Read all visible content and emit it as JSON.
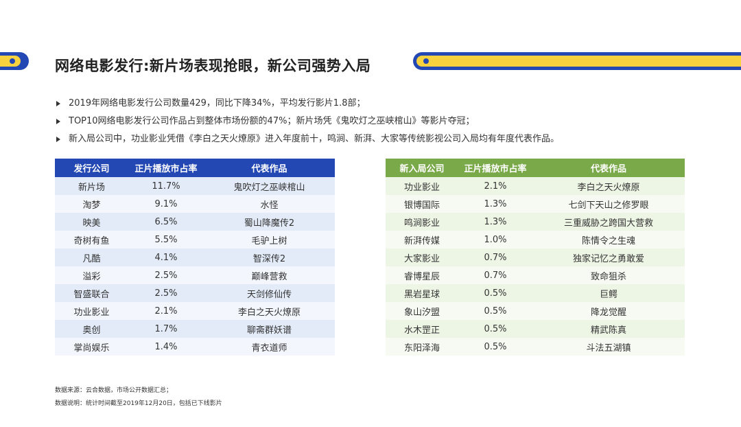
{
  "title": "网络电影发行:新片场表现抢眼，新公司强势入局",
  "bullets": [
    "2019年网络电影发行公司数量429，同比下降34%，平均发行影片1.8部；",
    "TOP10网络电影发行公司作品占到整体市场份额的47%；新片场凭《鬼吹灯之巫峡棺山》等影片夺冠；",
    "新入局公司中，功业影业凭借《李白之天火燎原》进入年度前十，鸣涧、新湃、大家等传统影视公司入局均有年度代表作品。"
  ],
  "table_left": {
    "headers": [
      "发行公司",
      "正片播放市占率",
      "代表作品"
    ],
    "rows": [
      [
        "新片场",
        "11.7%",
        "鬼吹灯之巫峡棺山"
      ],
      [
        "淘梦",
        "9.1%",
        "水怪"
      ],
      [
        "映美",
        "6.5%",
        "蜀山降魔传2"
      ],
      [
        "奇树有鱼",
        "5.5%",
        "毛驴上树"
      ],
      [
        "凡酷",
        "4.1%",
        "智深传2"
      ],
      [
        "溢彩",
        "2.5%",
        "巅峰营救"
      ],
      [
        "智盛联合",
        "2.5%",
        "天剑修仙传"
      ],
      [
        "功业影业",
        "2.1%",
        "李白之天火燎原"
      ],
      [
        "奥创",
        "1.7%",
        "聊斋群妖谱"
      ],
      [
        "掌尚娱乐",
        "1.4%",
        "青衣道师"
      ]
    ]
  },
  "table_right": {
    "headers": [
      "新入局公司",
      "正片播放市占率",
      "代表作品"
    ],
    "rows": [
      [
        "功业影业",
        "2.1%",
        "李白之天火燎原"
      ],
      [
        "银博国际",
        "1.3%",
        "七剑下天山之修罗眼"
      ],
      [
        "鸣涧影业",
        "1.3%",
        "三重威胁之跨国大营救"
      ],
      [
        "新湃传媒",
        "1.0%",
        "陈情令之生魂"
      ],
      [
        "大家影业",
        "0.7%",
        "独家记忆之勇敢爱"
      ],
      [
        "睿博星辰",
        "0.7%",
        "致命狙杀"
      ],
      [
        "黑岩星球",
        "0.5%",
        "巨鳄"
      ],
      [
        "象山汐盟",
        "0.5%",
        "降龙觉醒"
      ],
      [
        "水木罡正",
        "0.5%",
        "精武陈真"
      ],
      [
        "东阳泽海",
        "0.5%",
        "斗法五湖镇"
      ]
    ]
  },
  "footnotes": {
    "source": "数据来源：云合数据，市场公开数据汇总；",
    "note": "数据说明：统计时间截至2019年12月20日，包括已下线影片"
  },
  "colors": {
    "blue": "#2348b3",
    "yellow": "#f7d23e",
    "green": "#7aa94a"
  }
}
